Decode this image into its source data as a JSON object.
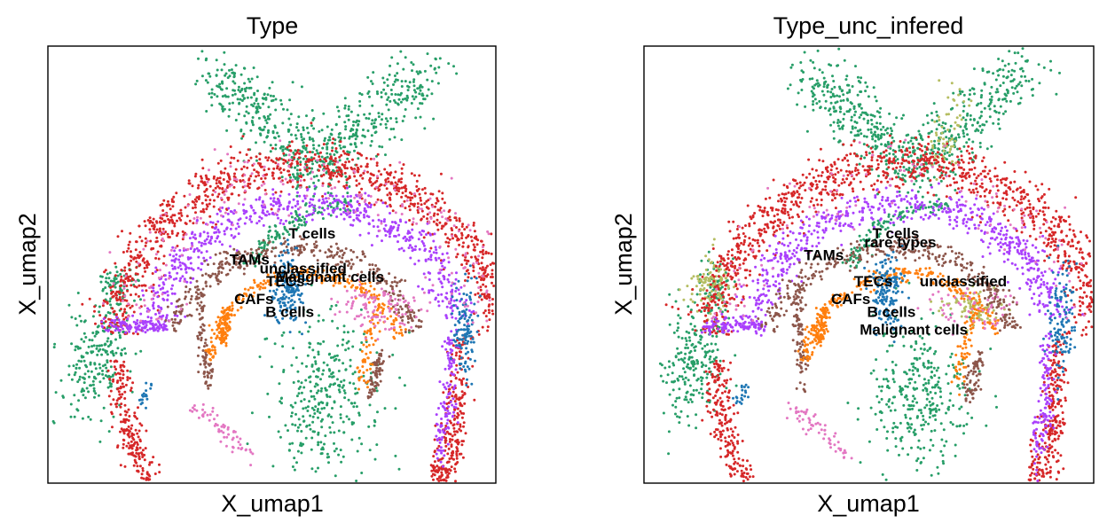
{
  "chart_data": [
    {
      "type": "scatter",
      "title": "Type",
      "xlabel": "X_umap1",
      "ylabel": "X_umap2",
      "grid": false,
      "legend": "on data",
      "categories": [
        {
          "name": "B cells",
          "color": "#1f77b4",
          "label_pos": [
            0.54,
            0.38
          ]
        },
        {
          "name": "CAFs",
          "color": "#ff7f0e",
          "label_pos": [
            0.46,
            0.41
          ]
        },
        {
          "name": "Malignant cells",
          "color": "#279e68",
          "label_pos": [
            0.63,
            0.46
          ]
        },
        {
          "name": "T cells",
          "color": "#d62728",
          "label_pos": [
            0.59,
            0.56
          ]
        },
        {
          "name": "TECs",
          "color": "#aa40fc",
          "label_pos": [
            0.53,
            0.45
          ]
        },
        {
          "name": "TAMs",
          "color": "#8c564b",
          "label_pos": [
            0.45,
            0.5
          ]
        },
        {
          "name": "unclassified",
          "color": "#e377c2",
          "label_pos": [
            0.57,
            0.48
          ]
        }
      ]
    },
    {
      "type": "scatter",
      "title": "Type_unc_infered",
      "xlabel": "X_umap1",
      "ylabel": "X_umap2",
      "grid": false,
      "legend": "on data",
      "categories": [
        {
          "name": "B cells",
          "color": "#1f77b4",
          "label_pos": [
            0.55,
            0.38
          ]
        },
        {
          "name": "CAFs",
          "color": "#ff7f0e",
          "label_pos": [
            0.46,
            0.41
          ]
        },
        {
          "name": "Malignant cells",
          "color": "#279e68",
          "label_pos": [
            0.6,
            0.34
          ]
        },
        {
          "name": "T cells",
          "color": "#d62728",
          "label_pos": [
            0.56,
            0.56
          ]
        },
        {
          "name": "TECs",
          "color": "#aa40fc",
          "label_pos": [
            0.51,
            0.45
          ]
        },
        {
          "name": "TAMs",
          "color": "#8c564b",
          "label_pos": [
            0.4,
            0.51
          ]
        },
        {
          "name": "rare types",
          "color": "#b5bd61",
          "label_pos": [
            0.57,
            0.54
          ]
        },
        {
          "name": "unclassified",
          "color": "#e377c2",
          "label_pos": [
            0.71,
            0.45
          ]
        }
      ]
    }
  ]
}
